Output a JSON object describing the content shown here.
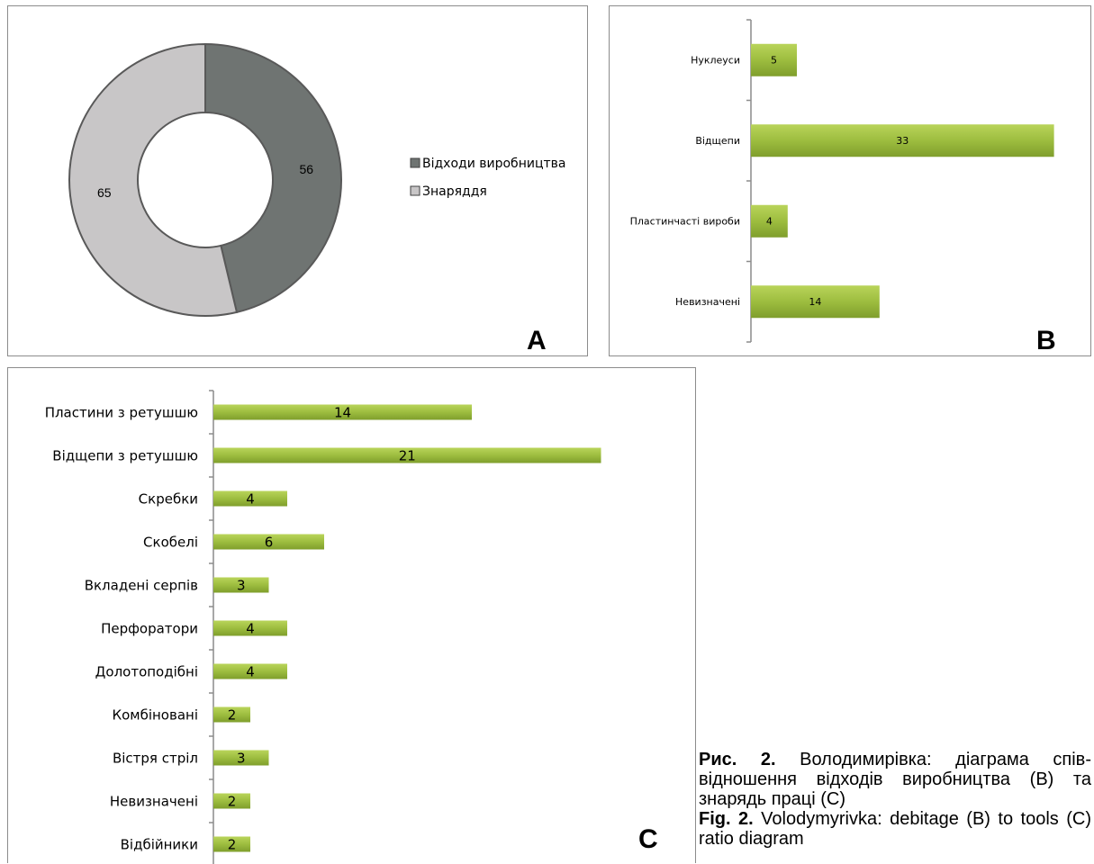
{
  "chart_data": [
    {
      "type": "pie",
      "panel_label": "A",
      "title": "",
      "slices": [
        {
          "label": "Відходи виробництва",
          "value": 56,
          "color": "#6f7472"
        },
        {
          "label": "Знаряддя",
          "value": 65,
          "color": "#c8c6c7"
        }
      ],
      "legend": "right"
    },
    {
      "type": "bar",
      "orientation": "horizontal",
      "panel_label": "B",
      "title": "",
      "categories": [
        "Нуклеуси",
        "Відщепи",
        "Пластинчасті вироби",
        "Невизначені"
      ],
      "values": [
        5,
        33,
        4,
        14
      ],
      "bar_color": "#9bbb3f",
      "grid": false
    },
    {
      "type": "bar",
      "orientation": "horizontal",
      "panel_label": "C",
      "title": "",
      "categories": [
        "Пластини з ретушшю",
        "Відщепи з ретушшю",
        "Скребки",
        "Скобелі",
        "Вкладені серпів",
        "Перфоратори",
        "Долотоподібні",
        "Комбіновані",
        "Вістря стріл",
        "Невизначені",
        "Відбійники"
      ],
      "values": [
        14,
        21,
        4,
        6,
        3,
        4,
        4,
        2,
        3,
        2,
        2
      ],
      "bar_color": "#9bbb3f",
      "grid": false
    }
  ],
  "caption": {
    "ua_label": "Рис. 2.",
    "ua_text": " Володимирівка: діаграма спів­відношення відходів виробництва (B) та знарядь праці (C)",
    "en_label": "Fig. 2.",
    "en_text": " Volodymyrivka: debitage (B) to tools (C) ratio diagram"
  }
}
